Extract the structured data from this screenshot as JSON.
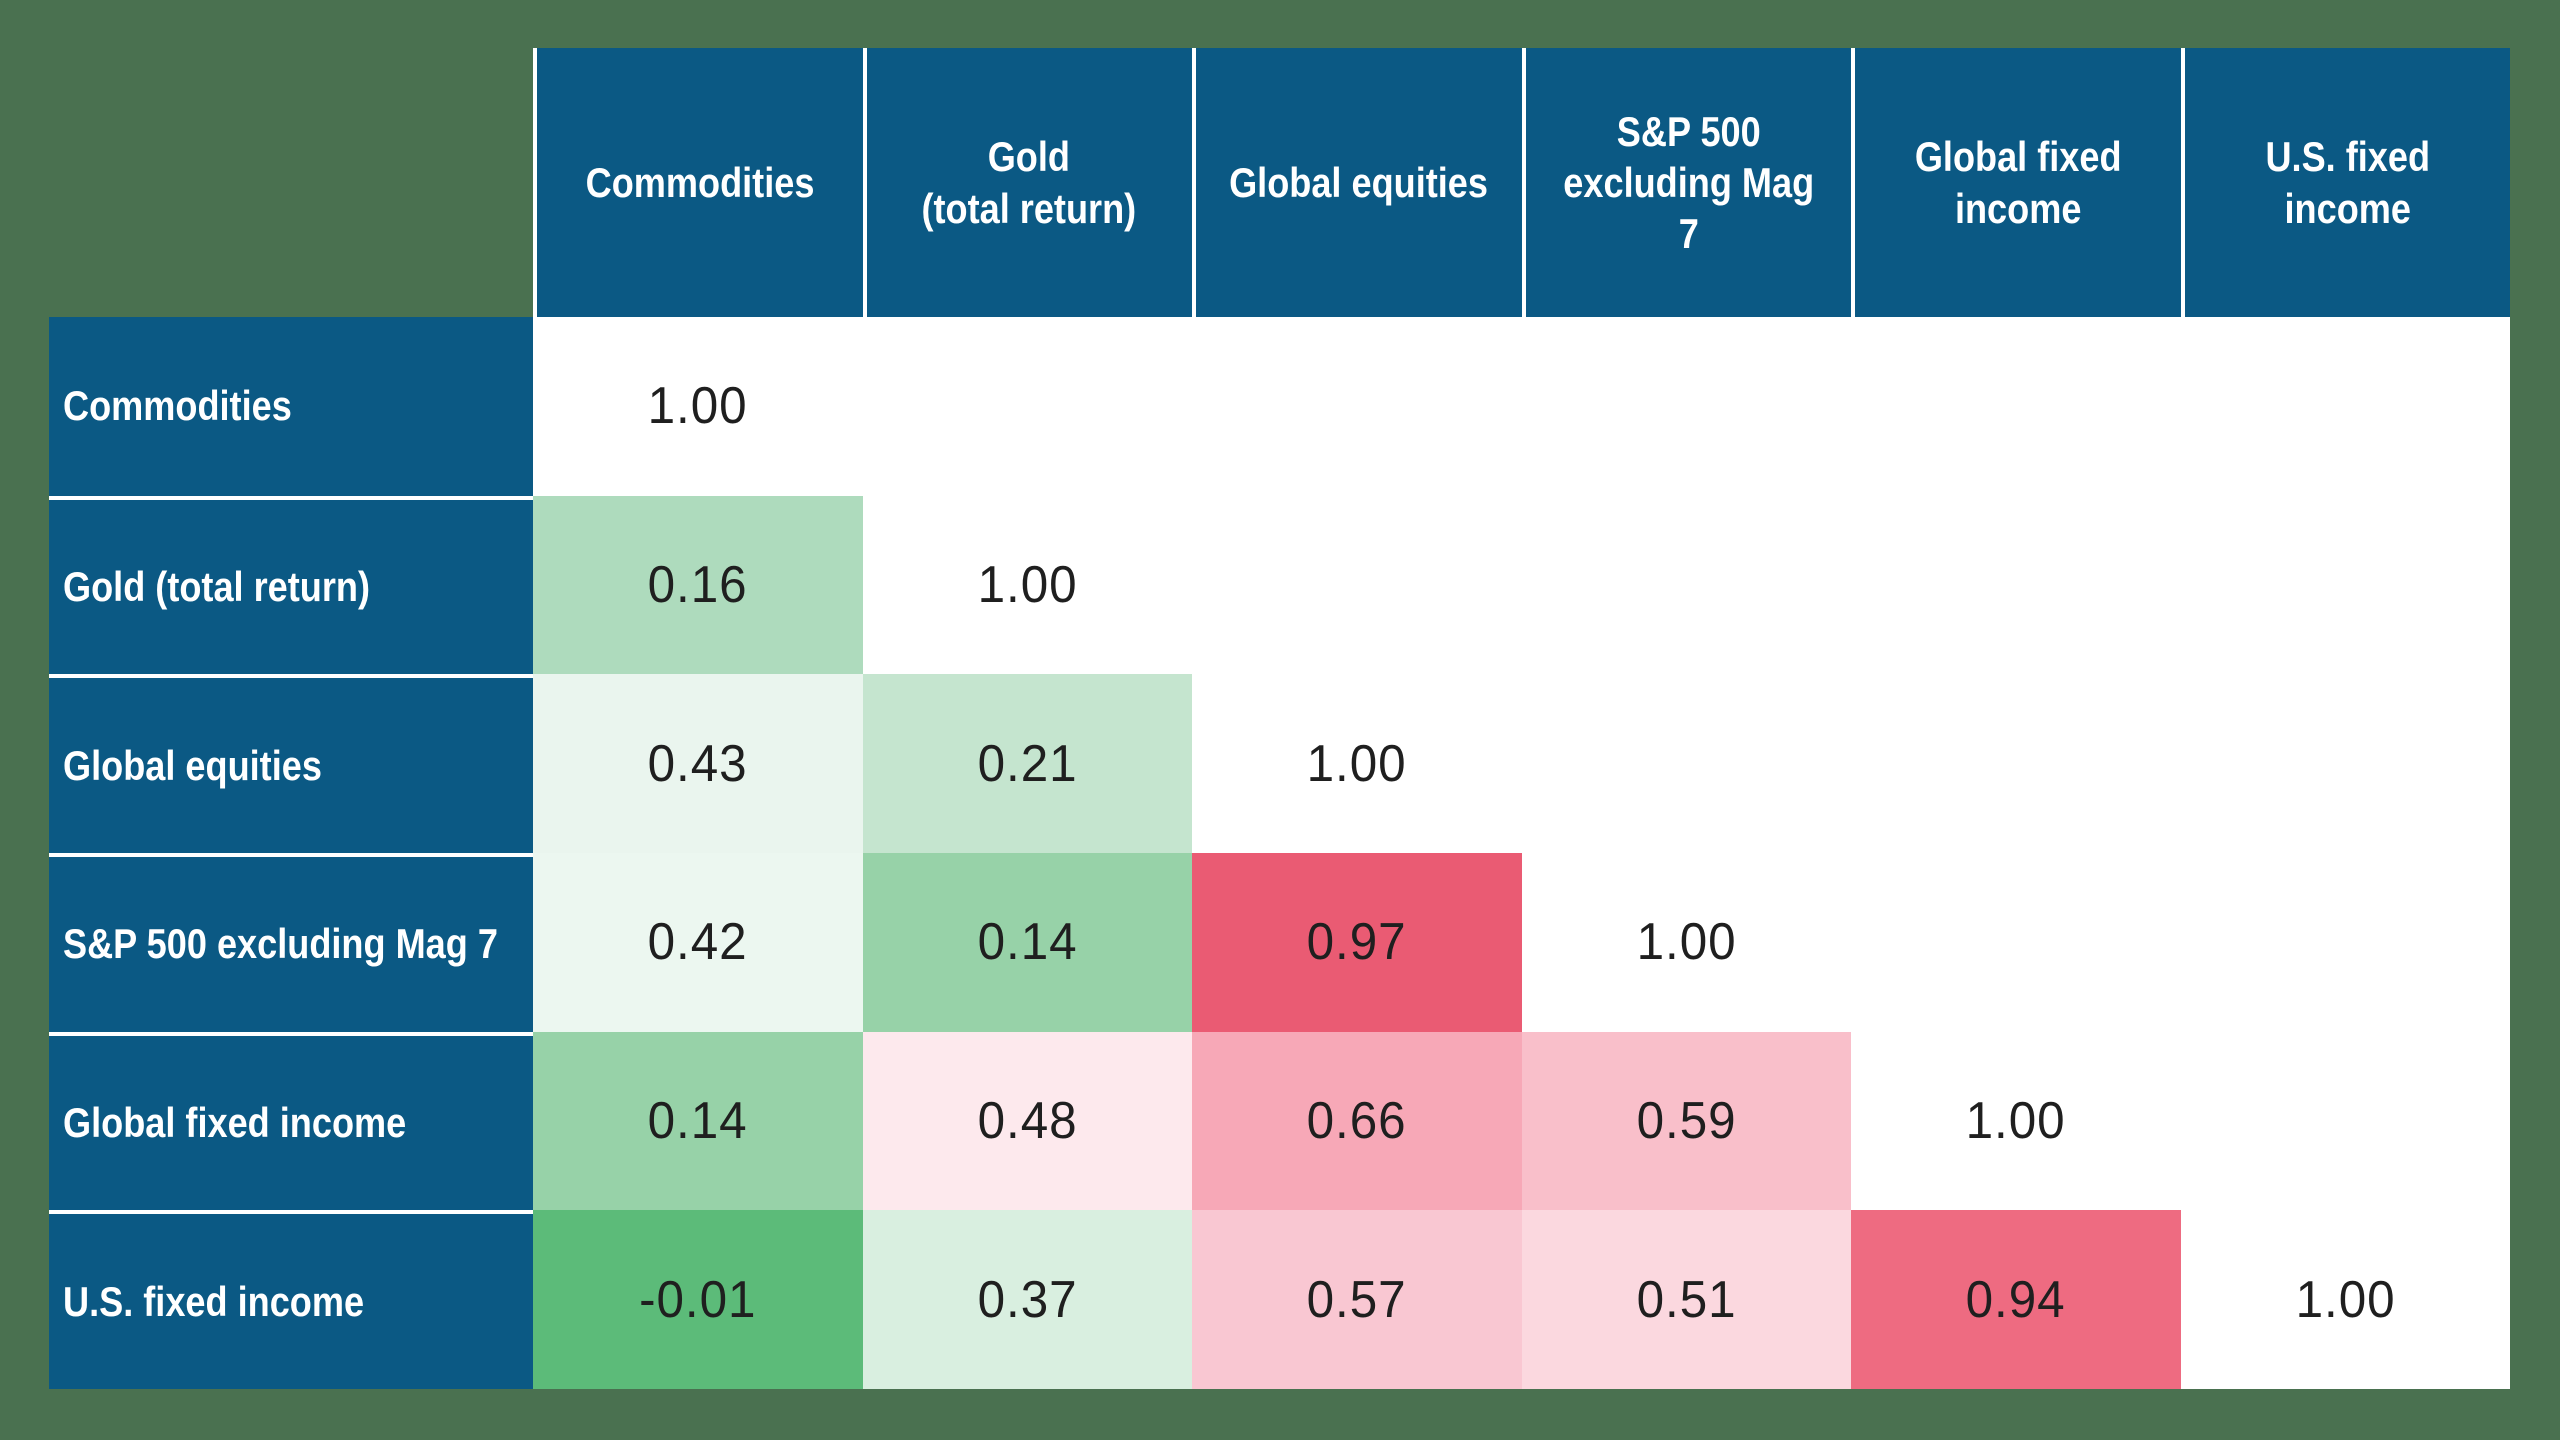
{
  "colors": {
    "page_bg": "#4A7150",
    "header_bg": "#0B5984",
    "divider": "#FFFFFF",
    "header_text": "#FFFFFF",
    "value_text": "#1F1F1F",
    "diagonal_bg": "#FFFFFF",
    "strong_green": "#5CBB79",
    "strong_red": "#EA5B73"
  },
  "matrix": {
    "column_headers": [
      "Commodities",
      "Gold\n(total return)",
      "Global equities",
      "S&P 500\nexcluding Mag 7",
      "Global fixed\nincome",
      "U.S. fixed income"
    ],
    "row_headers": [
      "Commodities",
      "Gold (total return)",
      "Global equities",
      "S&P 500 excluding Mag 7",
      "Global fixed income",
      "U.S. fixed income"
    ],
    "cells": [
      [
        {
          "value": "1.00",
          "bg": "#FFFFFF"
        },
        null,
        null,
        null,
        null,
        null
      ],
      [
        {
          "value": "0.16",
          "bg": "#AEDBBD"
        },
        {
          "value": "1.00",
          "bg": "#FFFFFF"
        },
        null,
        null,
        null,
        null
      ],
      [
        {
          "value": "0.43",
          "bg": "#EAF5EE"
        },
        {
          "value": "0.21",
          "bg": "#C5E5CF"
        },
        {
          "value": "1.00",
          "bg": "#FFFFFF"
        },
        null,
        null,
        null
      ],
      [
        {
          "value": "0.42",
          "bg": "#ECF7F0"
        },
        {
          "value": "0.14",
          "bg": "#97D2A8"
        },
        {
          "value": "0.97",
          "bg": "#EA5B73"
        },
        {
          "value": "1.00",
          "bg": "#FFFFFF"
        },
        null,
        null
      ],
      [
        {
          "value": "0.14",
          "bg": "#97D2A8"
        },
        {
          "value": "0.48",
          "bg": "#FDE9ED"
        },
        {
          "value": "0.66",
          "bg": "#F7A8B7"
        },
        {
          "value": "0.59",
          "bg": "#F9BFCA"
        },
        {
          "value": "1.00",
          "bg": "#FFFFFF"
        },
        null
      ],
      [
        {
          "value": "-0.01",
          "bg": "#5CBB79"
        },
        {
          "value": "0.37",
          "bg": "#D9EFE0"
        },
        {
          "value": "0.57",
          "bg": "#F9C7D2"
        },
        {
          "value": "0.51",
          "bg": "#FBD8DF"
        },
        {
          "value": "0.94",
          "bg": "#EE6B81"
        },
        {
          "value": "1.00",
          "bg": "#FFFFFF"
        }
      ]
    ]
  },
  "chart_data": {
    "type": "heatmap",
    "title": "",
    "subtitle": "",
    "categories": [
      "Commodities",
      "Gold (total return)",
      "Global equities",
      "S&P 500 excluding Mag 7",
      "Global fixed income",
      "U.S. fixed income"
    ],
    "matrix_lower_triangle": [
      [
        1.0,
        null,
        null,
        null,
        null,
        null
      ],
      [
        0.16,
        1.0,
        null,
        null,
        null,
        null
      ],
      [
        0.43,
        0.21,
        1.0,
        null,
        null,
        null
      ],
      [
        0.42,
        0.14,
        0.97,
        1.0,
        null,
        null
      ],
      [
        0.14,
        0.48,
        0.66,
        0.59,
        1.0,
        null
      ],
      [
        -0.01,
        0.37,
        0.57,
        0.51,
        0.94,
        1.0
      ]
    ],
    "value_range": [
      -1,
      1
    ],
    "color_scale": "green = low/negative correlation, pink/red = high correlation, white = diagonal (1.00) and unused upper triangle",
    "legend_position": "none",
    "grid": false
  }
}
